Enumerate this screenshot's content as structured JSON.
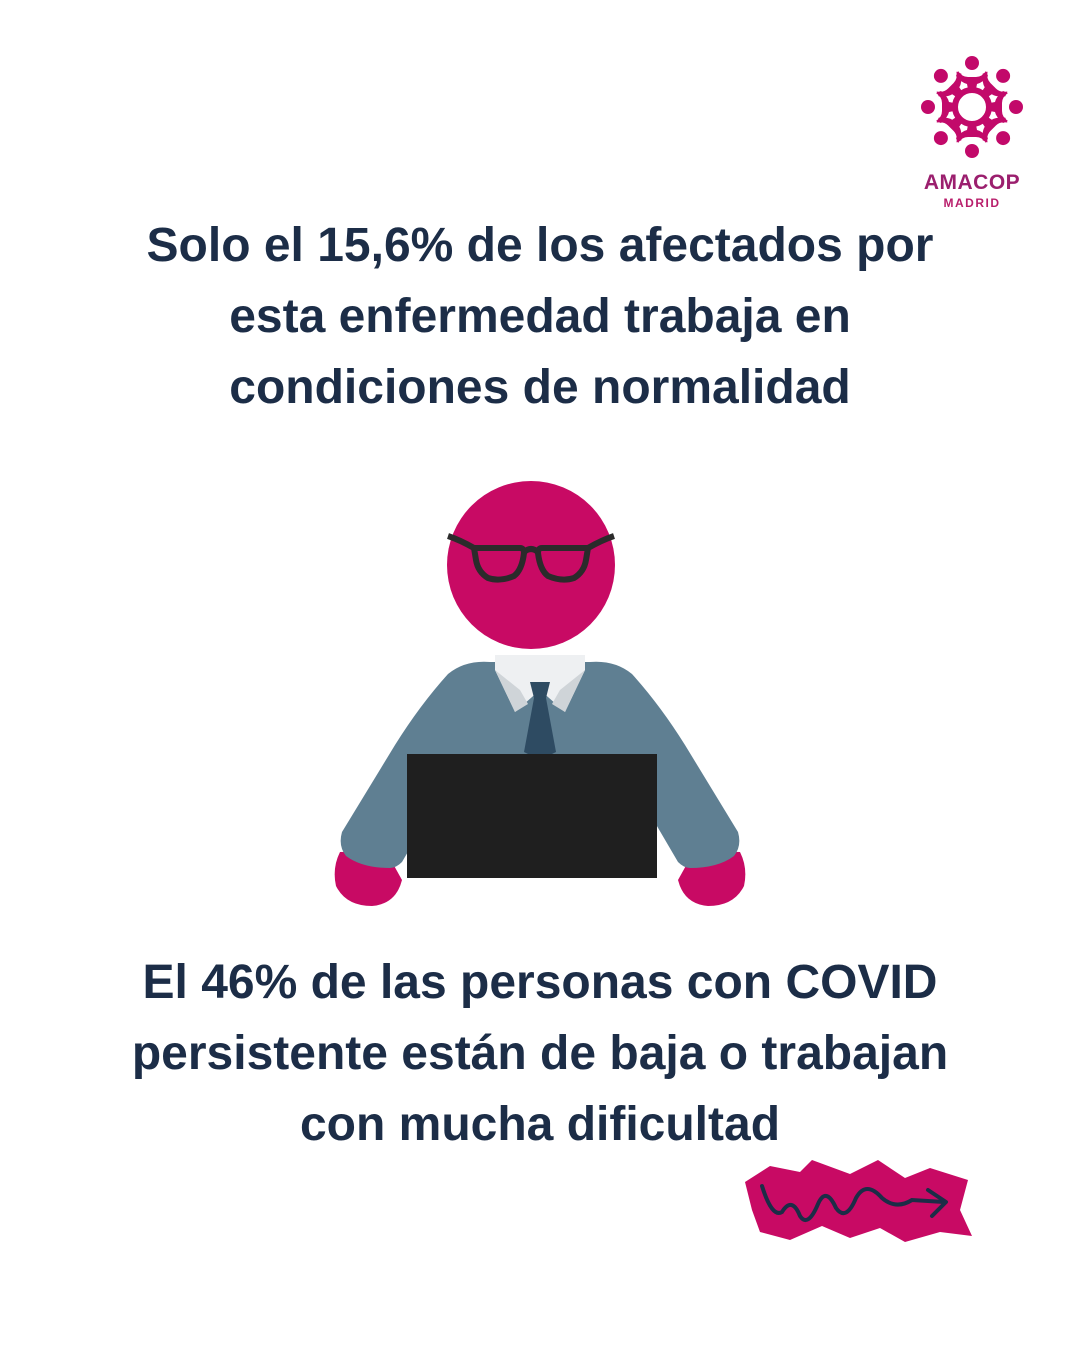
{
  "logo": {
    "name": "AMACOP",
    "subname": "MADRID",
    "color": "#c2096a"
  },
  "headline_top": {
    "lines": [
      "Solo el 15,6% de los afectados por",
      "esta enfermedad trabaja en",
      "condiciones de normalidad"
    ]
  },
  "headline_bottom": {
    "lines": [
      "El 46% de las personas con COVID",
      "persistente están de baja o trabajan",
      "con mucha dificultad"
    ]
  },
  "colors": {
    "text": "#1c2d47",
    "magenta": "#c80a64",
    "suit": "#5f7f92",
    "laptop": "#1f1f1f"
  },
  "icons": {
    "logo": "people-ring-logo-icon",
    "figure": "office-worker-at-laptop-icon",
    "decoration": "squiggle-arrow-icon"
  }
}
